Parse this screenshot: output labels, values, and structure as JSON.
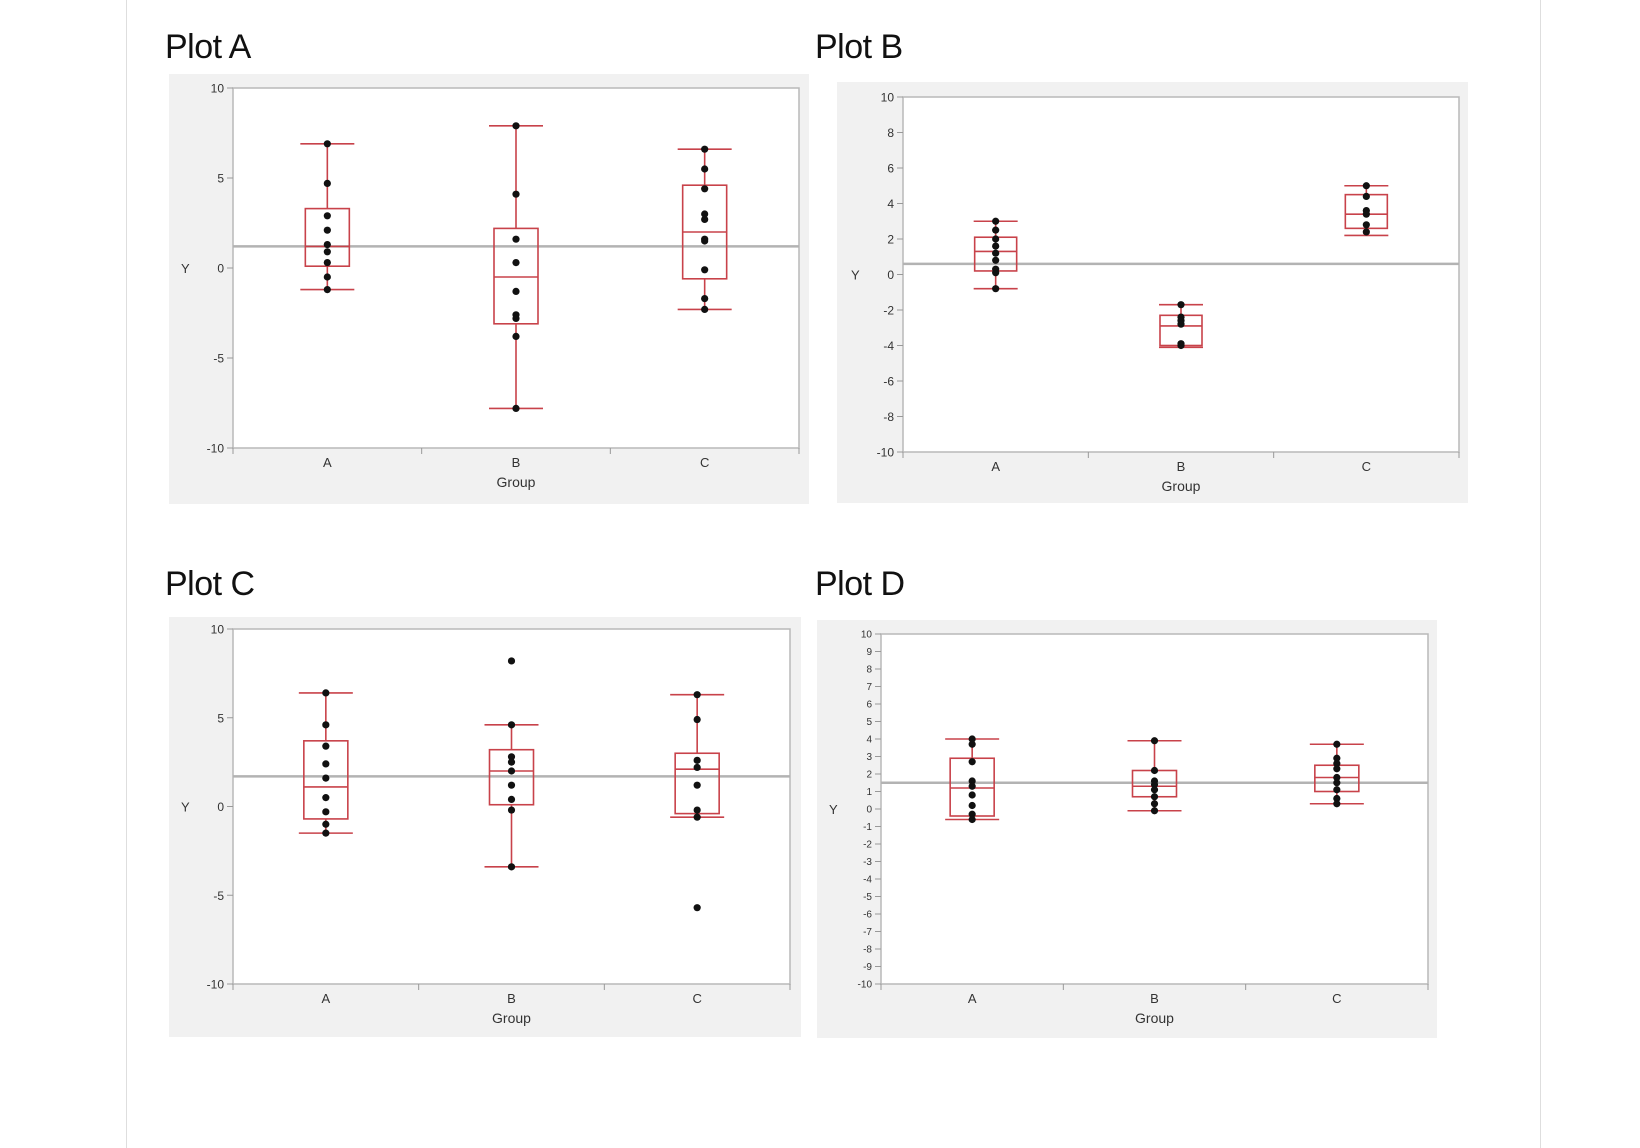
{
  "chart_data": [
    {
      "type": "box",
      "title": "Plot A",
      "xlabel": "Group",
      "ylabel": "Y",
      "ylim": [
        -10,
        10
      ],
      "yticks": [
        -10,
        -5,
        0,
        5,
        10
      ],
      "grand_mean": 1.2,
      "categories": [
        "A",
        "B",
        "C"
      ],
      "groups": [
        {
          "name": "A",
          "q1": 0.1,
          "median": 1.2,
          "q3": 3.3,
          "whisker_low": -1.2,
          "whisker_high": 6.9,
          "points": [
            6.9,
            4.7,
            2.9,
            2.1,
            1.3,
            0.9,
            0.3,
            -0.5,
            -1.2
          ]
        },
        {
          "name": "B",
          "q1": -3.1,
          "median": -0.5,
          "q3": 2.2,
          "whisker_low": -7.8,
          "whisker_high": 7.9,
          "points": [
            7.9,
            4.1,
            1.6,
            0.3,
            -1.3,
            -2.6,
            -2.8,
            -3.8,
            -7.8
          ]
        },
        {
          "name": "C",
          "q1": -0.6,
          "median": 2.0,
          "q3": 4.6,
          "whisker_low": -2.3,
          "whisker_high": 6.6,
          "points": [
            6.6,
            5.5,
            4.4,
            3.0,
            2.7,
            1.6,
            1.5,
            -0.1,
            -1.7,
            -2.3
          ]
        }
      ]
    },
    {
      "type": "box",
      "title": "Plot B",
      "xlabel": "Group",
      "ylabel": "Y",
      "ylim": [
        -10,
        10
      ],
      "yticks": [
        -10,
        -8,
        -6,
        -4,
        -2,
        0,
        2,
        4,
        6,
        8,
        10
      ],
      "grand_mean": 0.6,
      "categories": [
        "A",
        "B",
        "C"
      ],
      "groups": [
        {
          "name": "A",
          "q1": 0.2,
          "median": 1.3,
          "q3": 2.1,
          "whisker_low": -0.8,
          "whisker_high": 3.0,
          "points": [
            3.0,
            2.5,
            2.0,
            1.6,
            1.2,
            0.8,
            0.3,
            0.1,
            -0.8
          ]
        },
        {
          "name": "B",
          "q1": -4.0,
          "median": -2.9,
          "q3": -2.3,
          "whisker_low": -4.1,
          "whisker_high": -1.7,
          "points": [
            -1.7,
            -2.4,
            -2.6,
            -2.8,
            -3.9,
            -4.0
          ]
        },
        {
          "name": "C",
          "q1": 2.6,
          "median": 3.4,
          "q3": 4.5,
          "whisker_low": 2.2,
          "whisker_high": 5.0,
          "points": [
            5.0,
            4.4,
            3.6,
            3.4,
            2.8,
            2.4
          ]
        }
      ]
    },
    {
      "type": "box",
      "title": "Plot C",
      "xlabel": "Group",
      "ylabel": "Y",
      "ylim": [
        -10,
        10
      ],
      "yticks": [
        -10,
        -5,
        0,
        5,
        10
      ],
      "grand_mean": 1.7,
      "categories": [
        "A",
        "B",
        "C"
      ],
      "groups": [
        {
          "name": "A",
          "q1": -0.7,
          "median": 1.1,
          "q3": 3.7,
          "whisker_low": -1.5,
          "whisker_high": 6.4,
          "points": [
            6.4,
            4.6,
            3.4,
            2.4,
            1.6,
            0.5,
            -0.3,
            -1.0,
            -1.5
          ]
        },
        {
          "name": "B",
          "q1": 0.1,
          "median": 2.0,
          "q3": 3.2,
          "whisker_low": -3.4,
          "whisker_high": 4.6,
          "points": [
            8.2,
            4.6,
            2.8,
            2.5,
            2.0,
            1.2,
            0.4,
            -0.2,
            -3.4
          ]
        },
        {
          "name": "C",
          "q1": -0.4,
          "median": 2.1,
          "q3": 3.0,
          "whisker_low": -0.6,
          "whisker_high": 6.3,
          "points": [
            6.3,
            4.9,
            2.6,
            2.2,
            1.2,
            -0.2,
            -0.6,
            -5.7
          ]
        }
      ]
    },
    {
      "type": "box",
      "title": "Plot D",
      "xlabel": "Group",
      "ylabel": "Y",
      "ylim": [
        -10,
        10
      ],
      "yticks": [
        -10,
        -9,
        -8,
        -7,
        -6,
        -5,
        -4,
        -3,
        -2,
        -1,
        0,
        1,
        2,
        3,
        4,
        5,
        6,
        7,
        8,
        9,
        10
      ],
      "grand_mean": 1.5,
      "categories": [
        "A",
        "B",
        "C"
      ],
      "groups": [
        {
          "name": "A",
          "q1": -0.4,
          "median": 1.2,
          "q3": 2.9,
          "whisker_low": -0.6,
          "whisker_high": 4.0,
          "points": [
            4.0,
            3.7,
            2.7,
            1.6,
            1.3,
            0.8,
            0.2,
            -0.3,
            -0.6
          ]
        },
        {
          "name": "B",
          "q1": 0.7,
          "median": 1.3,
          "q3": 2.2,
          "whisker_low": -0.1,
          "whisker_high": 3.9,
          "points": [
            3.9,
            2.2,
            1.6,
            1.4,
            1.1,
            0.7,
            0.3,
            -0.1
          ]
        },
        {
          "name": "C",
          "q1": 1.0,
          "median": 1.8,
          "q3": 2.5,
          "whisker_low": 0.3,
          "whisker_high": 3.7,
          "points": [
            3.7,
            2.9,
            2.6,
            2.3,
            1.8,
            1.5,
            1.1,
            0.6,
            0.3
          ]
        }
      ]
    }
  ]
}
